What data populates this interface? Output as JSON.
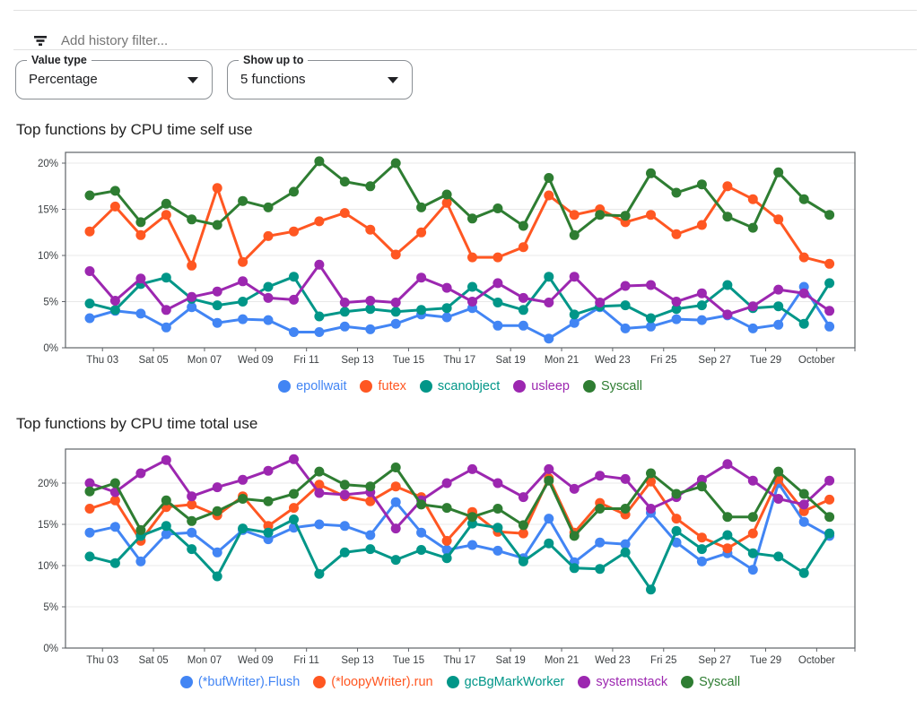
{
  "filter": {
    "icon": "filter-list-icon",
    "placeholder": "Add history filter..."
  },
  "controls": {
    "value_type": {
      "label": "Value type",
      "value": "Percentage"
    },
    "show_up_to": {
      "label": "Show up to",
      "value": "5 functions"
    }
  },
  "axis": {
    "y_tick_labels": [
      "0%",
      "5%",
      "10%",
      "15%",
      "20%"
    ],
    "x_tick_labels": [
      "Thu 03",
      "Sat 05",
      "Mon 07",
      "Wed 09",
      "Fri 11",
      "Sep 13",
      "Tue 15",
      "Thu 17",
      "Sat 19",
      "Mon 21",
      "Wed 23",
      "Fri 25",
      "Sep 27",
      "Tue 29",
      "October"
    ]
  },
  "chart_data": [
    {
      "type": "line",
      "title": "Top functions by CPU time self use",
      "xlabel": "",
      "ylabel": "",
      "ylim": [
        0,
        21.2
      ],
      "grid": true,
      "legend_position": "bottom",
      "x_tick_labels": [
        "Thu 03",
        "Sat 05",
        "Mon 07",
        "Wed 09",
        "Fri 11",
        "Sep 13",
        "Tue 15",
        "Thu 17",
        "Sat 19",
        "Mon 21",
        "Wed 23",
        "Fri 25",
        "Sep 27",
        "Tue 29",
        "October"
      ],
      "y_tick_labels": [
        "0%",
        "5%",
        "10%",
        "15%",
        "20%"
      ],
      "series": [
        {
          "name": "epollwait",
          "color": "#4285F4",
          "values": [
            3.2,
            4.0,
            3.7,
            2.2,
            4.4,
            2.7,
            3.1,
            3.0,
            1.7,
            1.7,
            2.3,
            2.0,
            2.6,
            3.6,
            3.3,
            4.3,
            2.4,
            2.4,
            1.0,
            2.7,
            4.4,
            2.1,
            2.3,
            3.1,
            3.0,
            3.5,
            2.1,
            2.5,
            6.6,
            2.3
          ]
        },
        {
          "name": "futex",
          "color": "#FF5722",
          "values": [
            12.6,
            15.3,
            12.2,
            14.4,
            8.9,
            17.3,
            9.3,
            12.1,
            12.6,
            13.7,
            14.6,
            12.8,
            10.1,
            12.5,
            15.7,
            9.8,
            9.8,
            10.9,
            16.5,
            14.4,
            15.0,
            13.6,
            14.4,
            12.3,
            13.3,
            17.5,
            16.1,
            13.9,
            9.8,
            9.1
          ]
        },
        {
          "name": "scanobject",
          "color": "#009688",
          "values": [
            4.8,
            4.1,
            6.9,
            7.6,
            5.3,
            4.6,
            5.0,
            6.6,
            7.7,
            3.4,
            3.9,
            4.2,
            3.9,
            4.1,
            4.3,
            6.6,
            4.9,
            4.1,
            7.7,
            3.6,
            4.5,
            4.6,
            3.2,
            4.2,
            4.6,
            6.8,
            4.3,
            4.5,
            2.6,
            7.0
          ]
        },
        {
          "name": "usleep",
          "color": "#9C27B0",
          "values": [
            8.3,
            5.1,
            7.5,
            4.1,
            5.5,
            6.1,
            7.2,
            5.4,
            5.2,
            9.0,
            4.9,
            5.1,
            4.9,
            7.6,
            6.5,
            5.0,
            7.0,
            5.4,
            4.9,
            7.7,
            4.9,
            6.7,
            6.8,
            5.0,
            5.9,
            3.6,
            4.5,
            6.3,
            5.9,
            4.0
          ]
        },
        {
          "name": "Syscall",
          "color": "#2E7D32",
          "values": [
            16.5,
            17.0,
            13.6,
            15.6,
            13.9,
            13.3,
            15.9,
            15.2,
            16.9,
            20.2,
            18.0,
            17.5,
            20.0,
            15.2,
            16.6,
            14.0,
            15.1,
            13.2,
            18.4,
            12.2,
            14.4,
            14.3,
            18.9,
            16.8,
            17.7,
            14.2,
            13.0,
            19.0,
            16.1,
            14.4
          ]
        }
      ]
    },
    {
      "type": "line",
      "title": "Top functions by CPU time total use",
      "xlabel": "",
      "ylabel": "",
      "ylim": [
        0,
        24.1
      ],
      "grid": true,
      "legend_position": "bottom",
      "x_tick_labels": [
        "Thu 03",
        "Sat 05",
        "Mon 07",
        "Wed 09",
        "Fri 11",
        "Sep 13",
        "Tue 15",
        "Thu 17",
        "Sat 19",
        "Mon 21",
        "Wed 23",
        "Fri 25",
        "Sep 27",
        "Tue 29",
        "October"
      ],
      "y_tick_labels": [
        "0%",
        "5%",
        "10%",
        "15%",
        "20%"
      ],
      "series": [
        {
          "name": "(*bufWriter).Flush",
          "color": "#4285F4",
          "values": [
            14.0,
            14.7,
            10.5,
            13.8,
            14.0,
            11.6,
            14.3,
            13.2,
            14.6,
            15.0,
            14.8,
            13.7,
            17.7,
            14.0,
            11.9,
            12.5,
            11.8,
            10.9,
            15.7,
            10.4,
            12.8,
            12.6,
            16.4,
            12.8,
            10.5,
            11.5,
            9.5,
            20.0,
            15.3,
            13.6
          ]
        },
        {
          "name": "(*loopyWriter).run",
          "color": "#FF5722",
          "values": [
            16.9,
            17.9,
            13.0,
            17.1,
            17.4,
            16.1,
            18.4,
            14.8,
            17.0,
            19.8,
            18.4,
            17.8,
            19.6,
            18.3,
            13.0,
            16.5,
            14.1,
            13.9,
            20.6,
            14.0,
            17.6,
            16.2,
            20.2,
            15.7,
            13.4,
            12.1,
            13.9,
            20.5,
            16.6,
            18.0
          ]
        },
        {
          "name": "gcBgMarkWorker",
          "color": "#009688",
          "values": [
            11.1,
            10.3,
            13.6,
            14.8,
            12.0,
            8.7,
            14.5,
            14.0,
            15.6,
            9.0,
            11.6,
            12.0,
            10.7,
            11.9,
            10.9,
            15.1,
            14.6,
            10.5,
            12.7,
            9.7,
            9.6,
            11.6,
            7.1,
            14.2,
            12.0,
            13.7,
            11.5,
            11.1,
            9.1,
            13.9
          ]
        },
        {
          "name": "systemstack",
          "color": "#9C27B0",
          "values": [
            20.0,
            18.9,
            21.2,
            22.8,
            18.4,
            19.5,
            20.4,
            21.5,
            22.9,
            18.8,
            18.6,
            18.9,
            14.5,
            17.9,
            20.0,
            21.7,
            20.0,
            18.3,
            21.7,
            19.3,
            20.9,
            20.5,
            16.9,
            18.3,
            20.4,
            22.3,
            20.3,
            18.1,
            17.4,
            20.3
          ]
        },
        {
          "name": "Syscall",
          "color": "#2E7D32",
          "values": [
            19.0,
            20.0,
            14.3,
            17.9,
            15.4,
            16.6,
            18.1,
            17.8,
            18.7,
            21.4,
            19.8,
            19.6,
            21.9,
            17.4,
            17.0,
            15.9,
            16.9,
            14.9,
            20.3,
            13.6,
            16.9,
            16.9,
            21.2,
            18.7,
            19.6,
            15.9,
            15.9,
            21.4,
            18.7,
            15.9
          ]
        }
      ]
    }
  ]
}
